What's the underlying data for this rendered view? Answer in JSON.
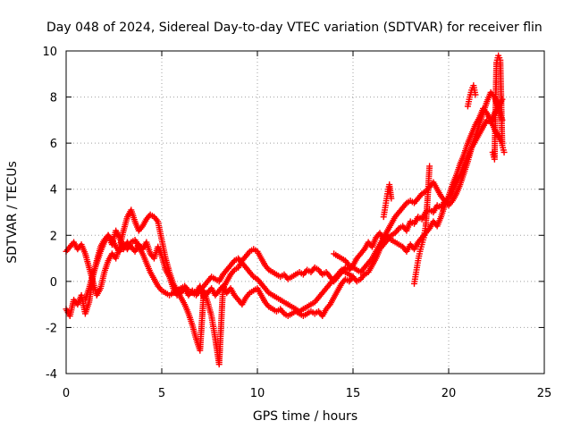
{
  "chart_data": {
    "type": "scatter",
    "title": "Day 048 of 2024, Sidereal Day-to-day VTEC variation (SDTVAR) for receiver flin",
    "xlabel": "GPS time / hours",
    "ylabel": "SDTVAR / TECUs",
    "xlim": [
      0,
      25
    ],
    "ylim": [
      -4,
      10
    ],
    "x_ticks": [
      0,
      5,
      10,
      15,
      20,
      25
    ],
    "y_ticks": [
      -4,
      -2,
      0,
      2,
      4,
      6,
      8,
      10
    ],
    "x_tick_labels": [
      "0",
      "5",
      "10",
      "15",
      "20",
      "25"
    ],
    "y_tick_labels": [
      "-4",
      "-2",
      "0",
      "2",
      "4",
      "6",
      "8",
      "10"
    ],
    "grid": true,
    "marker": "plus",
    "color": "#ff0000",
    "series": [
      {
        "x": [
          0.0,
          0.2,
          0.4,
          0.6,
          0.8,
          1.0,
          1.2,
          1.4,
          1.6,
          1.8,
          2.0,
          2.2,
          2.4,
          2.6,
          2.8,
          3.0,
          3.2,
          3.4,
          3.6,
          3.8,
          4.0,
          4.2,
          4.4,
          4.6,
          4.8,
          5.0,
          5.2,
          5.4,
          5.6,
          5.8,
          6.0,
          6.2,
          6.4,
          6.6,
          6.8,
          7.0,
          7.2,
          7.4,
          7.6,
          7.8,
          8.0,
          8.2,
          8.4,
          8.6,
          8.8,
          9.0,
          9.2,
          9.4,
          9.6,
          9.8,
          10.0,
          10.2,
          10.4,
          10.6,
          10.8,
          11.0,
          11.2,
          11.4,
          11.6,
          11.8,
          12.0,
          12.2,
          12.4,
          12.6,
          12.8,
          13.0,
          13.2,
          13.4,
          13.6,
          13.8,
          14.0,
          14.2,
          14.4,
          14.6,
          14.8,
          15.0,
          15.2,
          15.4,
          15.6,
          15.8,
          16.0,
          16.2,
          16.4,
          16.6,
          16.8,
          17.0,
          17.2,
          17.4,
          17.6,
          17.8,
          18.0,
          18.2,
          18.4,
          18.6,
          18.8,
          19.0,
          19.2,
          19.4,
          19.6,
          19.8,
          20.0,
          20.2,
          20.4,
          20.6,
          20.8,
          21.0,
          21.2,
          21.4,
          21.6,
          21.8,
          22.0,
          22.2,
          22.4,
          22.6,
          22.8
        ],
        "y": [
          -1.2,
          -1.5,
          -0.8,
          -1.0,
          -0.6,
          -1.4,
          -0.9,
          0.2,
          0.9,
          1.5,
          1.8,
          2.0,
          1.6,
          2.2,
          1.9,
          1.4,
          1.7,
          1.5,
          1.3,
          1.6,
          1.4,
          1.7,
          1.2,
          1.0,
          1.5,
          1.1,
          0.5,
          0.2,
          -0.3,
          -0.6,
          -0.5,
          -0.3,
          -0.6,
          -0.4,
          -0.5,
          -0.2,
          -0.7,
          -0.5,
          -0.3,
          -0.6,
          -0.4,
          -0.2,
          -0.5,
          -0.3,
          -0.6,
          -0.8,
          -1.0,
          -0.7,
          -0.5,
          -0.4,
          -0.3,
          -0.6,
          -0.9,
          -1.1,
          -1.2,
          -1.3,
          -1.2,
          -1.4,
          -1.5,
          -1.4,
          -1.3,
          -1.4,
          -1.5,
          -1.4,
          -1.3,
          -1.4,
          -1.3,
          -1.5,
          -1.2,
          -1.0,
          -0.7,
          -0.4,
          -0.1,
          0.1,
          0.0,
          0.2,
          0.0,
          0.1,
          0.3,
          0.4,
          0.7,
          1.0,
          1.4,
          1.6,
          1.8,
          2.0,
          2.1,
          2.3,
          2.4,
          2.2,
          2.6,
          2.5,
          2.8,
          2.7,
          3.0,
          3.1,
          3.0,
          3.3,
          3.2,
          3.5,
          3.6,
          3.9,
          4.3,
          4.6,
          5.0,
          5.4,
          5.8,
          6.1,
          6.4,
          6.7,
          7.0,
          6.9,
          7.3,
          7.6,
          7.9
        ]
      },
      {
        "x": [
          0.0,
          0.2,
          0.4,
          0.6,
          0.8,
          1.0,
          1.2,
          1.4,
          1.6,
          1.8,
          2.0,
          2.2,
          2.4,
          2.6,
          2.8,
          3.0,
          3.2,
          3.4,
          3.6,
          3.8,
          4.0,
          4.2,
          4.4,
          4.6,
          4.8,
          5.0,
          5.2,
          5.4,
          5.6,
          5.8,
          6.0,
          6.2,
          6.4,
          6.6,
          6.8,
          7.0,
          7.2,
          7.4,
          7.6,
          7.8,
          8.0,
          8.2,
          8.4,
          8.6,
          8.8,
          9.0,
          9.2,
          9.4,
          9.6,
          9.8,
          10.0,
          10.2,
          10.4,
          10.6,
          10.8,
          11.0,
          11.2,
          11.4,
          11.6,
          11.8,
          12.0,
          12.2,
          12.4,
          12.6,
          12.8,
          13.0,
          13.2,
          13.4,
          13.6,
          13.8,
          14.0,
          14.2,
          14.4,
          14.6,
          14.8,
          15.0,
          15.2,
          15.4,
          15.6,
          15.8,
          16.0,
          16.2,
          16.4,
          16.6,
          16.8,
          17.0,
          17.2,
          17.4,
          17.6,
          17.8,
          18.0,
          18.2,
          18.4,
          18.6,
          18.8,
          19.0,
          19.2,
          19.4,
          19.6,
          19.8,
          20.0,
          20.2,
          20.4,
          20.6,
          20.8,
          21.0,
          21.2,
          21.4,
          21.6,
          21.8,
          22.0,
          22.2,
          22.4,
          22.6,
          22.8
        ],
        "y": [
          1.3,
          1.5,
          1.7,
          1.4,
          1.6,
          1.2,
          0.6,
          0.0,
          -0.6,
          -0.3,
          0.4,
          0.9,
          1.2,
          1.0,
          1.5,
          2.2,
          2.8,
          3.1,
          2.6,
          2.2,
          2.4,
          2.7,
          2.9,
          2.8,
          2.6,
          1.8,
          1.0,
          0.4,
          -0.1,
          -0.4,
          -0.7,
          -1.0,
          -1.4,
          -1.9,
          -2.5,
          -3.0,
          -0.4,
          -0.9,
          -1.5,
          -2.5,
          -3.6,
          -0.3,
          0.0,
          0.3,
          0.5,
          0.6,
          0.9,
          1.1,
          1.3,
          1.4,
          1.3,
          1.0,
          0.7,
          0.5,
          0.4,
          0.3,
          0.2,
          0.3,
          0.1,
          0.2,
          0.3,
          0.4,
          0.3,
          0.5,
          0.4,
          0.6,
          0.5,
          0.3,
          0.4,
          0.2,
          0.0,
          0.2,
          0.4,
          0.6,
          0.5,
          0.7,
          1.0,
          1.2,
          1.4,
          1.7,
          1.5,
          1.9,
          2.1,
          1.8,
          2.0,
          1.8,
          1.7,
          1.6,
          1.5,
          1.3,
          1.6,
          1.4,
          1.7,
          1.9,
          2.1,
          2.3,
          2.6,
          2.4,
          2.8,
          3.3,
          3.7,
          4.2,
          4.6,
          5.1,
          5.5,
          6.0,
          6.4,
          6.8,
          7.1,
          7.5,
          7.3,
          7.0,
          6.6,
          6.3,
          6.0
        ]
      },
      {
        "x": [
          1.0,
          1.2,
          1.4,
          1.6,
          1.8,
          2.0,
          2.2,
          2.4,
          2.6,
          2.8,
          3.0,
          3.2,
          3.4,
          3.6,
          3.8,
          4.0,
          4.2,
          4.4,
          4.6,
          4.8,
          5.0,
          5.2,
          5.4,
          5.6,
          5.8,
          6.0,
          6.2,
          6.4,
          6.6,
          6.8,
          7.0,
          7.2,
          7.4,
          7.6,
          7.8,
          8.0,
          8.2,
          8.4,
          8.6,
          8.8,
          9.0,
          9.2,
          9.4,
          9.6,
          9.8,
          10.0,
          10.2,
          10.4,
          10.6,
          10.8,
          11.0,
          11.2,
          11.4,
          11.6,
          11.8,
          12.0,
          12.2,
          12.4,
          12.6,
          12.8,
          13.0,
          13.2,
          13.4,
          13.6,
          13.8,
          14.0,
          14.2,
          14.4,
          14.6,
          14.8,
          15.0
        ],
        "y": [
          -0.8,
          -0.3,
          0.3,
          0.8,
          1.3,
          1.7,
          2.0,
          1.8,
          1.5,
          1.3,
          1.6,
          1.4,
          1.7,
          1.8,
          1.5,
          1.2,
          0.8,
          0.4,
          0.1,
          -0.2,
          -0.4,
          -0.5,
          -0.6,
          -0.5,
          -0.4,
          -0.3,
          -0.2,
          -0.4,
          -0.5,
          -0.6,
          -0.4,
          -0.2,
          0.0,
          0.2,
          0.1,
          0.0,
          0.3,
          0.5,
          0.7,
          0.9,
          1.0,
          0.8,
          0.6,
          0.4,
          0.2,
          0.1,
          -0.1,
          -0.3,
          -0.5,
          -0.6,
          -0.7,
          -0.8,
          -0.9,
          -1.0,
          -1.1,
          -1.2,
          -1.3,
          -1.2,
          -1.1,
          -1.0,
          -0.9,
          -0.7,
          -0.5,
          -0.3,
          -0.1,
          0.1,
          0.3,
          0.5,
          0.4,
          0.3,
          0.2
        ]
      },
      {
        "x": [
          14.0,
          14.2,
          14.4,
          14.6,
          14.8,
          15.0,
          15.2,
          15.4,
          15.6,
          15.8,
          16.0,
          16.2,
          16.4,
          16.6,
          16.8,
          17.0,
          17.2,
          17.4,
          17.6,
          17.8,
          18.0,
          18.2,
          18.4,
          18.6,
          18.8,
          19.0,
          19.2,
          19.4,
          19.6,
          19.8,
          20.0,
          20.2,
          20.4,
          20.6,
          20.8,
          21.0,
          21.2,
          21.4,
          21.6,
          21.8,
          22.0,
          22.2,
          22.4,
          22.6,
          22.8
        ],
        "y": [
          1.2,
          1.1,
          1.0,
          0.9,
          0.7,
          0.6,
          0.5,
          0.4,
          0.6,
          0.8,
          1.0,
          1.3,
          1.6,
          1.9,
          2.2,
          2.5,
          2.8,
          3.0,
          3.2,
          3.4,
          3.5,
          3.4,
          3.6,
          3.8,
          3.9,
          4.1,
          4.3,
          4.0,
          3.7,
          3.5,
          3.3,
          3.5,
          3.8,
          4.2,
          4.7,
          5.2,
          5.8,
          6.3,
          6.8,
          7.3,
          7.8,
          8.2,
          8.0,
          7.5,
          7.0
        ]
      },
      {
        "x": [
          16.6,
          16.7,
          16.8,
          16.9,
          17.0,
          18.2,
          18.3,
          18.4,
          18.5,
          18.6,
          18.7,
          18.8,
          18.9,
          19.0,
          21.0,
          21.1,
          21.2,
          21.3,
          21.4,
          22.3,
          22.4,
          22.5,
          22.6,
          22.7,
          22.8,
          22.9
        ],
        "y": [
          2.8,
          3.3,
          3.8,
          4.2,
          3.6,
          -0.1,
          0.4,
          0.9,
          1.3,
          1.6,
          1.9,
          2.4,
          3.6,
          5.0,
          7.6,
          8.0,
          8.3,
          8.5,
          8.1,
          5.6,
          5.3,
          9.5,
          9.8,
          9.6,
          5.9,
          5.6
        ]
      }
    ]
  }
}
